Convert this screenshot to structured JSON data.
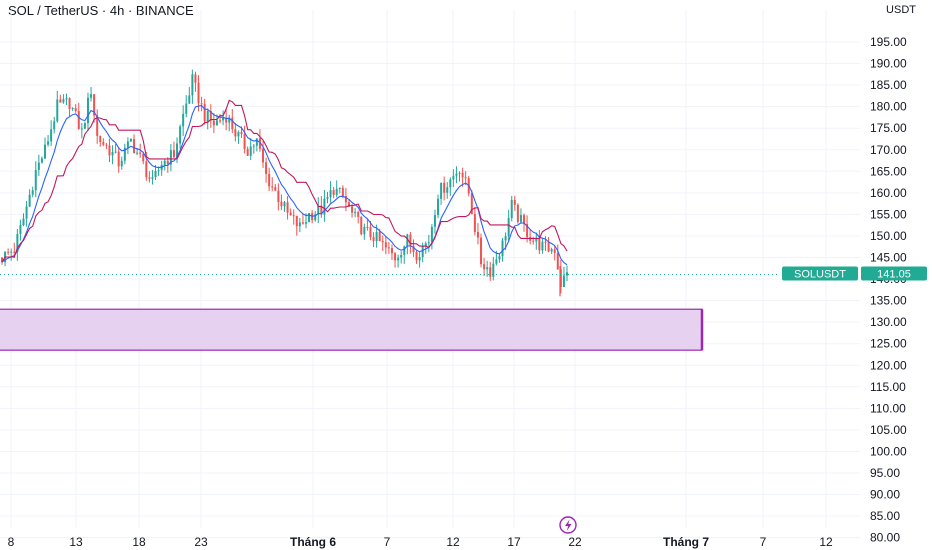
{
  "header": {
    "symbol_line": "SOL / TetherUS · 4h · BINANCE",
    "currency": "USDT"
  },
  "price_tag": {
    "symbol": "SOLUSDT",
    "value": "141.05",
    "price": 141.05,
    "color": "#22ab94"
  },
  "zone": {
    "low": 123.5,
    "high": 133.0,
    "fill": "#e6d2f0",
    "stroke": "#9c27b0"
  },
  "colors": {
    "up": "#26a69a",
    "down": "#ef5350",
    "line_red": "#c2185b",
    "line_blue": "#2962ff",
    "grid": "#f0f3fa",
    "dotted": "#22ab94"
  },
  "flash_icon": "lightning-icon",
  "chart_data": {
    "type": "candlestick",
    "y_axis_ticks": [
      "195.00",
      "190.00",
      "185.00",
      "180.00",
      "175.00",
      "170.00",
      "165.00",
      "160.00",
      "155.00",
      "150.00",
      "145.00",
      "140.00",
      "135.00",
      "130.00",
      "125.00",
      "120.00",
      "115.00",
      "110.00",
      "105.00",
      "100.00",
      "95.00",
      "90.00",
      "85.00",
      "80.00"
    ],
    "x_axis_ticks": [
      {
        "label": "8",
        "bold": false
      },
      {
        "label": "13",
        "bold": false
      },
      {
        "label": "18",
        "bold": false
      },
      {
        "label": "23",
        "bold": false
      },
      {
        "label": "Tháng 6",
        "bold": true
      },
      {
        "label": "7",
        "bold": false
      },
      {
        "label": "12",
        "bold": false
      },
      {
        "label": "17",
        "bold": false
      },
      {
        "label": "22",
        "bold": false
      },
      {
        "label": "Tháng 7",
        "bold": true
      },
      {
        "label": "7",
        "bold": false
      },
      {
        "label": "12",
        "bold": false
      }
    ],
    "ylim": [
      78,
      196
    ],
    "close_path": [
      [
        0,
        145
      ],
      [
        4,
        147
      ],
      [
        7,
        154
      ],
      [
        11,
        165
      ],
      [
        14,
        170
      ],
      [
        18,
        180
      ],
      [
        22,
        181
      ],
      [
        26,
        174
      ],
      [
        29,
        184
      ],
      [
        31,
        173
      ],
      [
        35,
        170
      ],
      [
        38,
        167
      ],
      [
        42,
        172
      ],
      [
        45,
        168
      ],
      [
        49,
        162
      ],
      [
        52,
        167
      ],
      [
        56,
        169
      ],
      [
        59,
        178
      ],
      [
        62,
        186
      ],
      [
        66,
        178
      ],
      [
        69,
        176
      ],
      [
        73,
        178
      ],
      [
        76,
        174
      ],
      [
        80,
        170
      ],
      [
        83,
        172
      ],
      [
        86,
        164
      ],
      [
        90,
        159
      ],
      [
        93,
        155
      ],
      [
        97,
        152
      ],
      [
        100,
        155
      ],
      [
        104,
        156
      ],
      [
        108,
        161
      ],
      [
        111,
        159
      ],
      [
        114,
        155
      ],
      [
        118,
        151
      ],
      [
        121,
        150
      ],
      [
        125,
        147
      ],
      [
        128,
        145
      ],
      [
        132,
        149
      ],
      [
        135,
        146
      ],
      [
        139,
        149
      ],
      [
        142,
        160
      ],
      [
        146,
        163
      ],
      [
        149,
        166
      ],
      [
        152,
        160
      ],
      [
        156,
        144
      ],
      [
        159,
        142
      ],
      [
        163,
        148
      ],
      [
        166,
        157
      ],
      [
        170,
        152
      ],
      [
        173,
        149
      ],
      [
        177,
        147
      ],
      [
        180,
        147
      ],
      [
        182,
        139
      ],
      [
        184,
        141
      ]
    ]
  }
}
